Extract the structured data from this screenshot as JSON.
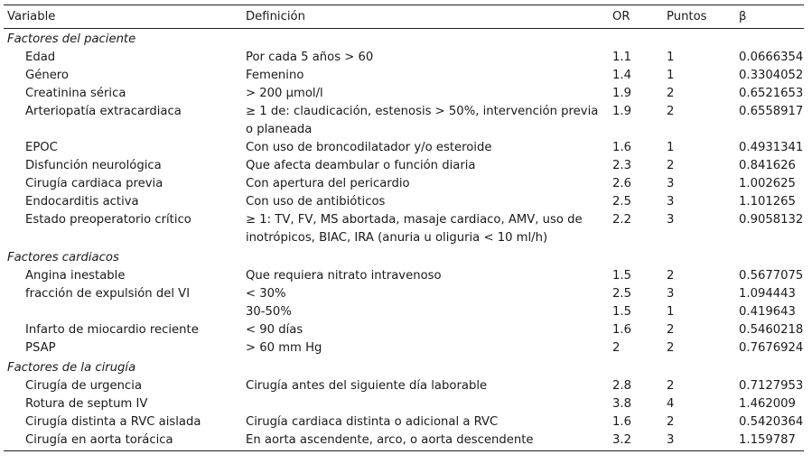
{
  "table": {
    "headers": {
      "variable": "Variable",
      "definition": "Definición",
      "or": "OR",
      "points": "Puntos",
      "beta": "β"
    },
    "sections": [
      {
        "title": "Factores del paciente",
        "rows": [
          {
            "variable": "Edad",
            "definition": "Por cada 5 años > 60",
            "or": "1.1",
            "points": "1",
            "beta": "0.0666354"
          },
          {
            "variable": "Género",
            "definition": "Femenino",
            "or": "1.4",
            "points": "1",
            "beta": "0.3304052"
          },
          {
            "variable": "Creatinina sérica",
            "definition": "> 200 μmol/l",
            "or": "1.9",
            "points": "2",
            "beta": "0.6521653"
          },
          {
            "variable": "Arteriopatía extracardiaca",
            "definition": "≥ 1 de: claudicación, estenosis > 50%, intervención previa o planeada",
            "or": "1.9",
            "points": "2",
            "beta": "0.6558917"
          },
          {
            "variable": "EPOC",
            "definition": "Con uso de broncodilatador y/o esteroide",
            "or": "1.6",
            "points": "1",
            "beta": "0.4931341"
          },
          {
            "variable": "Disfunción neurológica",
            "definition": "Que afecta deambular o función diaria",
            "or": "2.3",
            "points": "2",
            "beta": "0.841626"
          },
          {
            "variable": "Cirugía cardiaca previa",
            "definition": "Con apertura del pericardio",
            "or": "2.6",
            "points": "3",
            "beta": "1.002625"
          },
          {
            "variable": "Endocarditis activa",
            "definition": "Con uso de antibióticos",
            "or": "2.5",
            "points": "3",
            "beta": "1.101265"
          },
          {
            "variable": "Estado preoperatorio crítico",
            "definition": "≥ 1: TV, FV, MS abortada, masaje cardiaco, AMV, uso de inotrópicos, BIAC, IRA (anuria u oliguria < 10 ml/h)",
            "or": "2.2",
            "points": "3",
            "beta": "0.9058132"
          }
        ]
      },
      {
        "title": "Factores cardiacos",
        "rows": [
          {
            "variable": "Angina inestable",
            "definition": "Que requiera nitrato intravenoso",
            "or": "1.5",
            "points": "2",
            "beta": "0.5677075"
          },
          {
            "variable": "fracción de expulsión del VI",
            "definition": "< 30%",
            "or": "2.5",
            "points": "3",
            "beta": "1.094443"
          },
          {
            "variable": "",
            "definition": "30-50%",
            "or": "1.5",
            "points": "1",
            "beta": "0.419643"
          },
          {
            "variable": "Infarto de miocardio reciente",
            "definition": "< 90 días",
            "or": "1.6",
            "points": "2",
            "beta": "0.5460218"
          },
          {
            "variable": "PSAP",
            "definition": "> 60 mm Hg",
            "or": "2",
            "points": "2",
            "beta": "0.7676924"
          }
        ]
      },
      {
        "title": "Factores de la cirugía",
        "rows": [
          {
            "variable": "Cirugía de urgencia",
            "definition": "Cirugía antes del siguiente día laborable",
            "or": "2.8",
            "points": "2",
            "beta": "0.7127953"
          },
          {
            "variable": "Rotura de septum IV",
            "definition": "",
            "or": "3.8",
            "points": "4",
            "beta": "1.462009"
          },
          {
            "variable": "Cirugía distinta a RVC aislada",
            "definition": "Cirugía cardiaca distinta o adicional a RVC",
            "or": "1.6",
            "points": "2",
            "beta": "0.5420364"
          },
          {
            "variable": "Cirugía en aorta torácica",
            "definition": "En aorta ascendente, arco, o aorta descendente",
            "or": "3.2",
            "points": "3",
            "beta": "1.159787"
          }
        ]
      }
    ]
  }
}
